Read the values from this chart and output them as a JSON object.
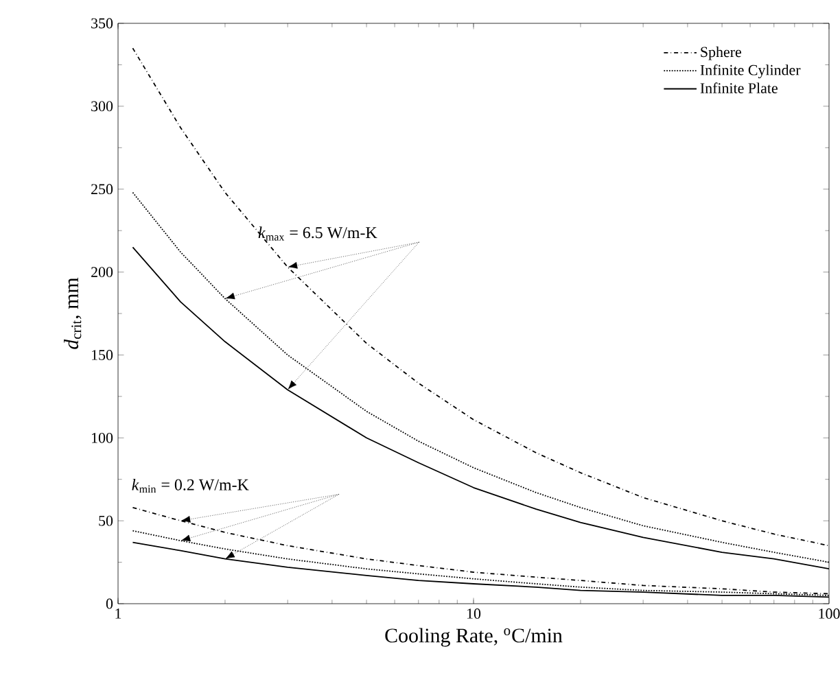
{
  "chart_data": {
    "type": "line",
    "xlabel": "Cooling Rate, $^{o}$C/min",
    "ylabel": "*d*$_{crit}$, mm",
    "log": "x",
    "grid": false,
    "legend": "top right",
    "marker": "none",
    "xlim": [
      1,
      100
    ],
    "xticks": [
      1,
      10,
      100
    ],
    "ylim": [
      0,
      350
    ],
    "yticks": [
      0,
      50,
      100,
      150,
      200,
      250,
      300,
      350
    ],
    "x": [
      1.1,
      1.5,
      2,
      3,
      5,
      7,
      10,
      15,
      20,
      30,
      50,
      70,
      100
    ],
    "series": [
      {
        "name": "Sphere",
        "color": "#000000",
        "line_style": "dashdot",
        "values": [
          335,
          287,
          248,
          203,
          157,
          133,
          111,
          91,
          79,
          64,
          50,
          42,
          35
        ]
      },
      {
        "name": "Infinite Cylinder",
        "color": "#000000",
        "line_style": "dotted",
        "values": [
          248,
          212,
          184,
          150,
          116,
          98,
          82,
          67,
          58,
          47,
          37,
          31,
          25
        ]
      },
      {
        "name": "Infinite Plate",
        "color": "#000000",
        "line_style": "solid",
        "values": [
          215,
          182,
          158,
          129,
          100,
          85,
          70,
          57,
          49,
          40,
          31,
          27,
          21
        ]
      },
      {
        "color": "#000000",
        "line_style": "dashdot",
        "values": [
          58,
          50,
          43,
          35,
          27,
          23,
          19,
          16,
          14,
          11,
          9,
          7,
          6
        ]
      },
      {
        "color": "#000000",
        "line_style": "dotted",
        "values": [
          44,
          38,
          33,
          27,
          21,
          18,
          15,
          12,
          10,
          8,
          7,
          6,
          5
        ]
      },
      {
        "color": "#000000",
        "line_style": "solid",
        "values": [
          37,
          32,
          27,
          22,
          17,
          14,
          12,
          10,
          8,
          7,
          5,
          5,
          4
        ]
      }
    ],
    "annotations": [
      "*k*$_{max}$ = 6.5 W/m-K",
      "*k*$_{min}$ = 0.2 W/m-K"
    ]
  }
}
